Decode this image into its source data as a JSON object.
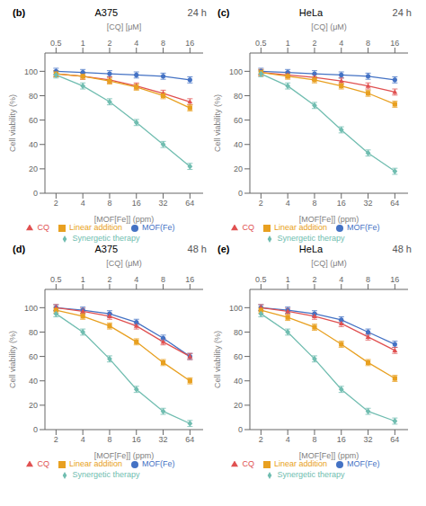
{
  "chart_data": [
    {
      "type": "line",
      "annotation": "(b)",
      "title": "A375",
      "subtitle": "24 h",
      "xlabel": "[MOF[Fe]] (ppm)",
      "x2label": "[CQ] [μM]",
      "ylabel": "Cell viability (%)",
      "x": [
        2,
        4,
        8,
        16,
        32,
        64
      ],
      "xlim": [
        1.5,
        90
      ],
      "xticks": [
        2,
        4,
        8,
        16,
        32,
        64
      ],
      "x2lim": [
        0.375,
        22.5
      ],
      "x2ticks": [
        0.5,
        1,
        2,
        4,
        8,
        16
      ],
      "ylim": [
        0,
        115
      ],
      "yticks": [
        0,
        20,
        40,
        60,
        80,
        100
      ],
      "log": "x",
      "grid": false,
      "legend": "bottom",
      "series": [
        {
          "name": "MOF(Fe)",
          "color": "#4472C4",
          "marker": "circle",
          "values": [
            100,
            99,
            98,
            97,
            96,
            93
          ],
          "errors": [
            2.5,
            2.5,
            2.5,
            2.5,
            2.5,
            2.5
          ]
        },
        {
          "name": "CQ",
          "color": "#E05050",
          "marker": "triangle",
          "values": [
            98,
            96,
            93,
            88,
            82,
            75
          ],
          "errors": [
            2.5,
            2.5,
            2.5,
            2.5,
            2.5,
            2.5
          ]
        },
        {
          "name": "Linear addition",
          "color": "#E8A020",
          "marker": "square",
          "values": [
            98,
            96,
            92,
            87,
            80,
            70
          ],
          "errors": [
            2.5,
            2.5,
            2.5,
            2.5,
            2.5,
            2.5
          ]
        },
        {
          "name": "Synergetic therapy",
          "color": "#70BDB0",
          "marker": "diamond",
          "values": [
            97,
            88,
            75,
            58,
            40,
            22
          ],
          "errors": [
            2.5,
            2.5,
            2.5,
            2.5,
            2.5,
            2.5
          ]
        }
      ]
    },
    {
      "type": "line",
      "annotation": "(c)",
      "title": "HeLa",
      "subtitle": "24 h",
      "xlabel": "[MOF[Fe]] (ppm)",
      "x2label": "[CQ] (μM)",
      "ylabel": "Cell viability (%)",
      "x": [
        2,
        4,
        8,
        16,
        32,
        64
      ],
      "xlim": [
        1.5,
        90
      ],
      "xticks": [
        2,
        4,
        8,
        16,
        32,
        64
      ],
      "x2lim": [
        0.375,
        22.5
      ],
      "x2ticks": [
        0.5,
        1,
        2,
        4,
        8,
        16
      ],
      "ylim": [
        0,
        115
      ],
      "yticks": [
        0,
        20,
        40,
        60,
        80,
        100
      ],
      "log": "x",
      "grid": false,
      "legend": "bottom",
      "series": [
        {
          "name": "MOF(Fe)",
          "color": "#4472C4",
          "marker": "circle",
          "values": [
            100,
            99,
            98,
            97,
            96,
            93
          ],
          "errors": [
            2.5,
            2.5,
            2.5,
            2.5,
            2.5,
            2.5
          ]
        },
        {
          "name": "CQ",
          "color": "#E05050",
          "marker": "triangle",
          "values": [
            99,
            97,
            95,
            92,
            88,
            83
          ],
          "errors": [
            2.5,
            2.5,
            2.5,
            2.5,
            2.5,
            2.5
          ]
        },
        {
          "name": "Linear addition",
          "color": "#E8A020",
          "marker": "square",
          "values": [
            99,
            96,
            93,
            88,
            82,
            73
          ],
          "errors": [
            2.5,
            2.5,
            2.5,
            2.5,
            2.5,
            2.5
          ]
        },
        {
          "name": "Synergetic therapy",
          "color": "#70BDB0",
          "marker": "diamond",
          "values": [
            98,
            88,
            72,
            52,
            33,
            18
          ],
          "errors": [
            2.5,
            2.5,
            2.5,
            2.5,
            2.5,
            2.5
          ]
        }
      ]
    },
    {
      "type": "line",
      "annotation": "(d)",
      "title": "A375",
      "subtitle": "48 h",
      "xlabel": "[MOF[Fe]] (ppm)",
      "x2label": "[CQ] (μM)",
      "ylabel": "Cell viability (%)",
      "x": [
        2,
        4,
        8,
        16,
        32,
        64
      ],
      "xlim": [
        1.5,
        90
      ],
      "xticks": [
        2,
        4,
        8,
        16,
        32,
        64
      ],
      "x2lim": [
        0.375,
        22.5
      ],
      "x2ticks": [
        0.5,
        1,
        2,
        4,
        8,
        16
      ],
      "ylim": [
        0,
        115
      ],
      "yticks": [
        0,
        20,
        40,
        60,
        80,
        100
      ],
      "log": "x",
      "grid": false,
      "legend": "bottom",
      "series": [
        {
          "name": "MOF(Fe)",
          "color": "#4472C4",
          "marker": "circle",
          "values": [
            100,
            98,
            95,
            88,
            75,
            60
          ],
          "errors": [
            2.5,
            2.5,
            2.5,
            2.5,
            2.5,
            2.5
          ]
        },
        {
          "name": "CQ",
          "color": "#E05050",
          "marker": "triangle",
          "values": [
            100,
            97,
            93,
            85,
            72,
            60
          ],
          "errors": [
            2.5,
            2.5,
            2.5,
            2.5,
            2.5,
            2.5
          ]
        },
        {
          "name": "Linear addition",
          "color": "#E8A020",
          "marker": "square",
          "values": [
            98,
            93,
            85,
            72,
            55,
            40
          ],
          "errors": [
            2.5,
            2.5,
            2.5,
            2.5,
            2.5,
            2.5
          ]
        },
        {
          "name": "Synergetic therapy",
          "color": "#70BDB0",
          "marker": "diamond",
          "values": [
            95,
            80,
            58,
            33,
            15,
            5
          ],
          "errors": [
            2.5,
            2.5,
            2.5,
            2.5,
            2.5,
            2.5
          ]
        }
      ]
    },
    {
      "type": "line",
      "annotation": "(e)",
      "title": "HeLa",
      "subtitle": "48 h",
      "xlabel": "[MOF[Fe]] (ppm)",
      "x2label": "[CQ] (μM)",
      "ylabel": "Cell viability (%)",
      "x": [
        2,
        4,
        8,
        16,
        32,
        64
      ],
      "xlim": [
        1.5,
        90
      ],
      "xticks": [
        2,
        4,
        8,
        16,
        32,
        64
      ],
      "x2lim": [
        0.375,
        22.5
      ],
      "x2ticks": [
        0.5,
        1,
        2,
        4,
        8,
        16
      ],
      "ylim": [
        0,
        115
      ],
      "yticks": [
        0,
        20,
        40,
        60,
        80,
        100
      ],
      "log": "x",
      "grid": false,
      "legend": "bottom",
      "series": [
        {
          "name": "MOF(Fe)",
          "color": "#4472C4",
          "marker": "circle",
          "values": [
            100,
            98,
            95,
            90,
            80,
            70
          ],
          "errors": [
            2.5,
            2.5,
            2.5,
            2.5,
            2.5,
            2.5
          ]
        },
        {
          "name": "CQ",
          "color": "#E05050",
          "marker": "triangle",
          "values": [
            100,
            97,
            93,
            87,
            76,
            65
          ],
          "errors": [
            2.5,
            2.5,
            2.5,
            2.5,
            2.5,
            2.5
          ]
        },
        {
          "name": "Linear addition",
          "color": "#E8A020",
          "marker": "square",
          "values": [
            98,
            92,
            84,
            70,
            55,
            42
          ],
          "errors": [
            2.5,
            2.5,
            2.5,
            2.5,
            2.5,
            2.5
          ]
        },
        {
          "name": "Synergetic therapy",
          "color": "#70BDB0",
          "marker": "diamond",
          "values": [
            95,
            80,
            58,
            33,
            15,
            7
          ],
          "errors": [
            2.5,
            2.5,
            2.5,
            2.5,
            2.5,
            2.5
          ]
        }
      ]
    }
  ]
}
